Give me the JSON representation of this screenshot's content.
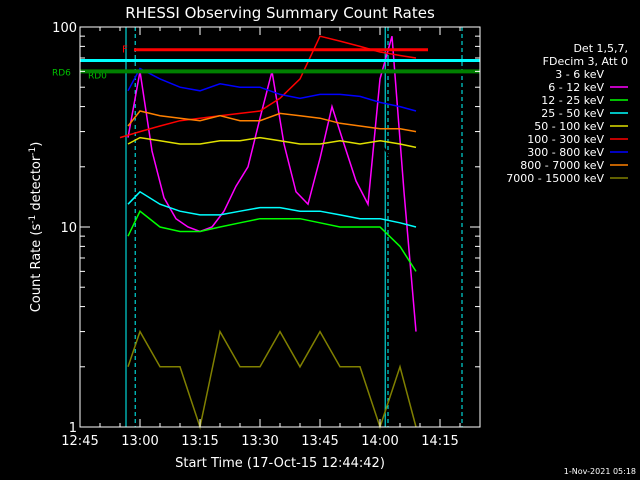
{
  "chart_data": {
    "type": "line",
    "title": "RHESSI Observing Summary Count Rates",
    "xlabel": "Start Time (17-Oct-15 12:44:42)",
    "ylabel_main": "Count Rate (s",
    "ylabel_sup": "-1",
    "ylabel_mid": " detector",
    "ylabel_sup2": "-1",
    "ylabel_end": ")",
    "yscale": "log",
    "ylim": [
      1,
      100
    ],
    "xlim_minutes": [
      0,
      100
    ],
    "x_ticks": [
      {
        "label": "12:45",
        "m": 0
      },
      {
        "label": "13:00",
        "m": 15
      },
      {
        "label": "13:15",
        "m": 30
      },
      {
        "label": "13:30",
        "m": 45
      },
      {
        "label": "13:45",
        "m": 60
      },
      {
        "label": "14:00",
        "m": 75
      },
      {
        "label": "14:15",
        "m": 90
      }
    ],
    "y_ticks": [
      {
        "label": "1",
        "v": 1
      },
      {
        "label": "10",
        "v": 10
      },
      {
        "label": "100",
        "v": 100
      }
    ],
    "legend_header": [
      "Det 1,5,7,",
      "FDecim 3, Att 0"
    ],
    "legend_placement": "right",
    "series": [
      {
        "name": "3 - 6 keV",
        "color": "#000000",
        "x": [
          12,
          15,
          20,
          25,
          30,
          35,
          40,
          45,
          50,
          55,
          60,
          65,
          70,
          75,
          80,
          84
        ],
        "y": [
          30,
          36,
          32,
          31,
          30,
          32,
          35,
          42,
          36,
          33,
          31,
          30,
          28,
          27,
          18,
          18
        ]
      },
      {
        "name": "6 - 12 keV",
        "color": "#ff00ff",
        "x": [
          12,
          15,
          18,
          21,
          24,
          27,
          30,
          33,
          36,
          39,
          42,
          45,
          48,
          51,
          54,
          57,
          60,
          63,
          66,
          69,
          72,
          75,
          78,
          81,
          84
        ],
        "y": [
          28,
          60,
          24,
          14,
          11,
          10,
          9.5,
          10,
          12,
          16,
          20,
          35,
          60,
          26,
          15,
          13,
          22,
          40,
          26,
          17,
          13,
          55,
          90,
          15,
          3
        ]
      },
      {
        "name": "12 - 25 keV",
        "color": "#00ff00",
        "x": [
          12,
          15,
          20,
          25,
          30,
          35,
          40,
          45,
          50,
          55,
          60,
          65,
          70,
          75,
          80,
          84
        ],
        "y": [
          9,
          12,
          10,
          9.5,
          9.5,
          10,
          10.5,
          11,
          11,
          11,
          10.5,
          10,
          10,
          10,
          8,
          6
        ]
      },
      {
        "name": "25 - 50 keV",
        "color": "#00ffff",
        "x": [
          12,
          15,
          20,
          25,
          30,
          35,
          40,
          45,
          50,
          55,
          60,
          65,
          70,
          75,
          80,
          84
        ],
        "y": [
          13,
          15,
          13,
          12,
          11.5,
          11.5,
          12,
          12.5,
          12.5,
          12,
          12,
          11.5,
          11,
          11,
          10.5,
          10
        ]
      },
      {
        "name": "50 - 100 keV",
        "color": "#e0e000",
        "x": [
          12,
          15,
          20,
          25,
          30,
          35,
          40,
          45,
          50,
          55,
          60,
          65,
          70,
          75,
          80,
          84
        ],
        "y": [
          26,
          28,
          27,
          26,
          26,
          27,
          27,
          28,
          27,
          26,
          26,
          27,
          26,
          27,
          26,
          25
        ]
      },
      {
        "name": "100 - 300 keV",
        "color": "#ff0000",
        "x": [
          10,
          15,
          20,
          25,
          30,
          35,
          40,
          45,
          50,
          55,
          60,
          65,
          70,
          75,
          80,
          84
        ],
        "y": [
          28,
          30,
          32,
          34,
          35,
          36,
          37,
          38,
          44,
          55,
          90,
          85,
          80,
          75,
          72,
          70
        ]
      },
      {
        "name": "300 - 800 keV",
        "color": "#0000ff",
        "x": [
          12,
          15,
          20,
          25,
          30,
          35,
          40,
          45,
          50,
          55,
          60,
          65,
          70,
          75,
          80,
          84
        ],
        "y": [
          48,
          62,
          55,
          50,
          48,
          52,
          50,
          50,
          46,
          44,
          46,
          46,
          45,
          42,
          40,
          38
        ]
      },
      {
        "name": "800 - 7000 keV",
        "color": "#ff8000",
        "x": [
          12,
          15,
          20,
          25,
          30,
          35,
          40,
          45,
          50,
          55,
          60,
          65,
          70,
          75,
          80,
          84
        ],
        "y": [
          32,
          38,
          36,
          35,
          34,
          36,
          34,
          34,
          37,
          36,
          35,
          33,
          32,
          31,
          31,
          30
        ]
      },
      {
        "name": "7000 - 15000 keV",
        "color": "#808000",
        "x": [
          12,
          15,
          20,
          25,
          30,
          35,
          40,
          45,
          50,
          55,
          60,
          65,
          70,
          75,
          80,
          84
        ],
        "y": [
          2,
          3,
          2,
          2,
          1,
          3,
          2,
          2,
          3,
          2,
          3,
          2,
          2,
          1,
          2,
          1
        ]
      }
    ],
    "annotations": [
      {
        "label": "RD0",
        "value": 68,
        "color": "#00ffff"
      },
      {
        "label": "RD6",
        "value": 60,
        "color": "#008000"
      },
      {
        "label": "F",
        "value": 77,
        "color": "#ff0000"
      }
    ],
    "vertical_markers_minutes": [
      {
        "m": 11.5,
        "color": "#00ffff",
        "style": "solid"
      },
      {
        "m": 13.8,
        "color": "#00ffff",
        "style": "dashed"
      },
      {
        "m": 76.3,
        "color": "#00ffff",
        "style": "solid"
      },
      {
        "m": 77,
        "color": "#00ffff",
        "style": "dashed"
      },
      {
        "m": 95.5,
        "color": "#00ffff",
        "style": "dashed"
      }
    ]
  },
  "footer_timestamp": "1-Nov-2021 05:18"
}
